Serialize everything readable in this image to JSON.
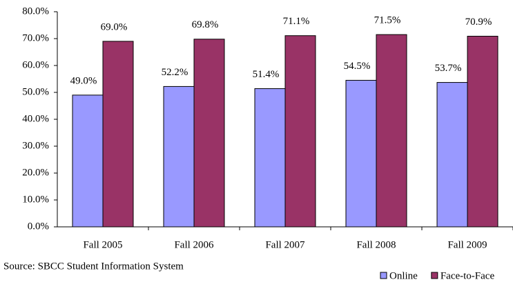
{
  "chart_data": {
    "type": "bar",
    "categories": [
      "Fall 2005",
      "Fall 2006",
      "Fall 2007",
      "Fall 2008",
      "Fall 2009"
    ],
    "series": [
      {
        "name": "Online",
        "color": "#9999ff",
        "values": [
          49.0,
          52.2,
          51.4,
          54.5,
          53.7
        ],
        "value_labels": [
          "49.0%",
          "52.2%",
          "51.4%",
          "54.5%",
          "53.7%"
        ]
      },
      {
        "name": "Face-to-Face",
        "color": "#993366",
        "values": [
          69.0,
          69.8,
          71.1,
          71.5,
          70.9
        ],
        "value_labels": [
          "69.0%",
          "69.8%",
          "71.1%",
          "71.5%",
          "70.9%"
        ]
      }
    ],
    "ylim": [
      0,
      80
    ],
    "yticks": [
      {
        "value": 0,
        "label": "0.0%"
      },
      {
        "value": 10,
        "label": "10.0%"
      },
      {
        "value": 20,
        "label": "20.0%"
      },
      {
        "value": 30,
        "label": "30.0%"
      },
      {
        "value": 40,
        "label": "40.0%"
      },
      {
        "value": 50,
        "label": "50.0%"
      },
      {
        "value": 60,
        "label": "60.0%"
      },
      {
        "value": 70,
        "label": "70.0%"
      },
      {
        "value": 80,
        "label": "80.0%"
      }
    ],
    "grid": false,
    "legend": "bottom-right",
    "source": "Source: SBCC Student Information System"
  }
}
